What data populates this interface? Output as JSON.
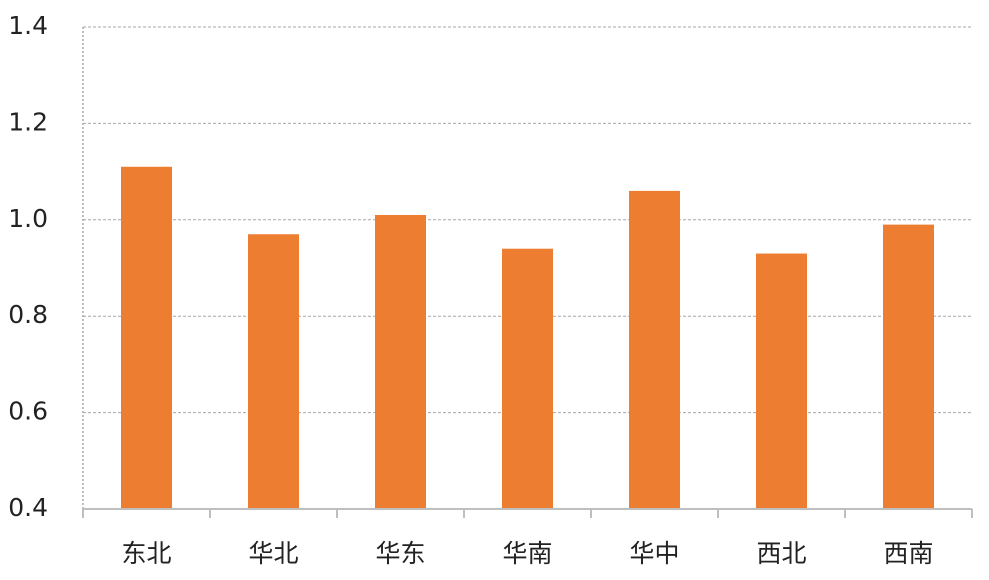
{
  "chart_data": {
    "type": "bar",
    "categories": [
      "东北",
      "华北",
      "华东",
      "华南",
      "华中",
      "西北",
      "西南"
    ],
    "values": [
      1.11,
      0.97,
      1.01,
      0.94,
      1.06,
      0.93,
      0.99
    ],
    "color": "#ed7d31",
    "ylim": [
      0.4,
      1.4
    ],
    "yticks": [
      0.4,
      0.6,
      0.8,
      {
        "value": 1,
        "label": "1.0"
      },
      1.2,
      1.4
    ],
    "grid": true
  }
}
